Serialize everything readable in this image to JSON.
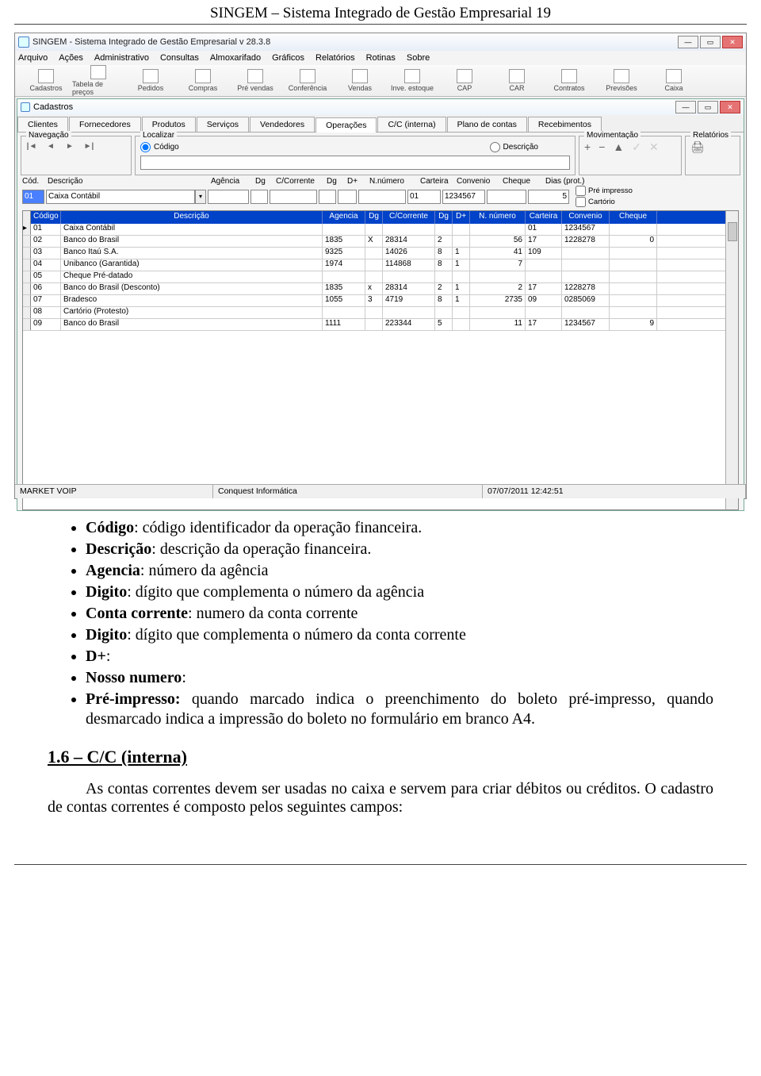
{
  "page_header": "SINGEM – Sistema Integrado de Gestão Empresarial 19",
  "app": {
    "title": "SINGEM - Sistema Integrado de Gestão Empresarial   v 28.3.8",
    "menus": [
      "Arquivo",
      "Ações",
      "Administrativo",
      "Consultas",
      "Almoxarifado",
      "Gráficos",
      "Relatórios",
      "Rotinas",
      "Sobre"
    ],
    "toolbar": [
      "Cadastros",
      "Tabela de preços",
      "Pedidos",
      "Compras",
      "Pré vendas",
      "Conferência",
      "Vendas",
      "Inve. estoque",
      "CAP",
      "CAR",
      "Contratos",
      "Previsões",
      "Caixa"
    ]
  },
  "inner": {
    "title": "Cadastros",
    "tabs": [
      "Clientes",
      "Fornecedores",
      "Produtos",
      "Serviços",
      "Vendedores",
      "Operações",
      "C/C (interna)",
      "Plano de contas",
      "Recebimentos"
    ],
    "active_tab": 5,
    "groups": {
      "nav": "Navegação",
      "loc": "Localizar",
      "loc_radio1": "Código",
      "loc_radio2": "Descrição",
      "mov": "Movimentação",
      "rel": "Relatórios"
    },
    "labels": {
      "cod": "Cód.",
      "desc": "Descrição",
      "ag": "Agência",
      "dg": "Dg",
      "cc": "C/Corrente",
      "dp": "D+",
      "nn": "N.número",
      "cart": "Carteira",
      "conv": "Convenio",
      "chq": "Cheque",
      "dias": "Dias (prot.)",
      "preimp": "Pré impresso",
      "cartorio": "Cartório"
    },
    "form": {
      "cod": "01",
      "desc": "Caixa Contábil",
      "cart": "01",
      "conv": "1234567",
      "dias": "5"
    },
    "grid_cols": [
      "Código",
      "Descrição",
      "Agencia",
      "Dg",
      "C/Corrente",
      "Dg",
      "D+",
      "N. número",
      "Carteira",
      "Convenio",
      "Cheque"
    ],
    "rows": [
      {
        "cod": "01",
        "desc": "Caixa Contábil",
        "ag": "",
        "dg1": "",
        "cc": "",
        "dg2": "",
        "dp": "",
        "nn": "",
        "cart": "01",
        "conv": "1234567",
        "chq": ""
      },
      {
        "cod": "02",
        "desc": "Banco do Brasil",
        "ag": "1835",
        "dg1": "X",
        "cc": "28314",
        "dg2": "2",
        "dp": "",
        "nn": "56",
        "cart": "17",
        "conv": "1228278",
        "chq": "0"
      },
      {
        "cod": "03",
        "desc": "Banco Itaú S.A.",
        "ag": "9325",
        "dg1": "",
        "cc": "14026",
        "dg2": "8",
        "dp": "1",
        "nn": "41",
        "cart": "109",
        "conv": "",
        "chq": ""
      },
      {
        "cod": "04",
        "desc": "Unibanco (Garantida)",
        "ag": "1974",
        "dg1": "",
        "cc": "114868",
        "dg2": "8",
        "dp": "1",
        "nn": "7",
        "cart": "",
        "conv": "",
        "chq": ""
      },
      {
        "cod": "05",
        "desc": "Cheque Pré-datado",
        "ag": "",
        "dg1": "",
        "cc": "",
        "dg2": "",
        "dp": "",
        "nn": "",
        "cart": "",
        "conv": "",
        "chq": ""
      },
      {
        "cod": "06",
        "desc": "Banco do Brasil (Desconto)",
        "ag": "1835",
        "dg1": "x",
        "cc": "28314",
        "dg2": "2",
        "dp": "1",
        "nn": "2",
        "cart": "17",
        "conv": "1228278",
        "chq": ""
      },
      {
        "cod": "07",
        "desc": "Bradesco",
        "ag": "1055",
        "dg1": "3",
        "cc": "4719",
        "dg2": "8",
        "dp": "1",
        "nn": "2735",
        "cart": "09",
        "conv": "0285069",
        "chq": ""
      },
      {
        "cod": "08",
        "desc": "Cartório (Protesto)",
        "ag": "",
        "dg1": "",
        "cc": "",
        "dg2": "",
        "dp": "",
        "nn": "",
        "cart": "",
        "conv": "",
        "chq": ""
      },
      {
        "cod": "09",
        "desc": "Banco do Brasil",
        "ag": "1111",
        "dg1": "",
        "cc": "223344",
        "dg2": "5",
        "dp": "",
        "nn": "11",
        "cart": "17",
        "conv": "1234567",
        "chq": "9"
      }
    ]
  },
  "statusbar": {
    "s1": "MARKET VOIP",
    "s2": "Conquest Informática",
    "s3": "07/07/2011 12:42:51"
  },
  "doc": {
    "b1a": "Código",
    "b1b": ": código identificador da operação financeira.",
    "b2a": "Descrição",
    "b2b": ": descrição da operação financeira.",
    "b3a": "Agencia",
    "b3b": ": número da agência",
    "b4a": "Digito",
    "b4b": ": dígito que complementa o número da agência",
    "b5a": "Conta corrente",
    "b5b": ": numero da conta corrente",
    "b6a": "Digito",
    "b6b": ": dígito que complementa o número da conta corrente",
    "b7a": "D+",
    "b7b": ":",
    "b8a": "Nosso numero",
    "b8b": ":",
    "b9a": "Pré-impresso:",
    "b9b": " quando marcado indica o preenchimento do boleto pré-impresso, quando desmarcado indica a impressão do boleto no formulário em branco A4.",
    "h": "1.6 – C/C (interna)",
    "p": "As contas correntes devem ser usadas no caixa e servem para criar débitos ou créditos. O cadastro de contas correntes é composto pelos seguintes campos:"
  }
}
